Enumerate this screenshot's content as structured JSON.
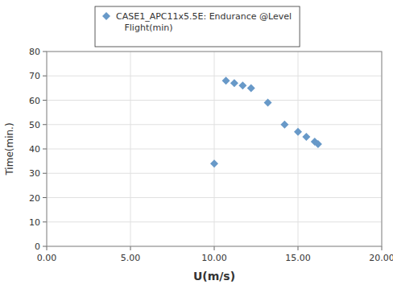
{
  "chart_data": {
    "type": "scatter",
    "x": [
      10.0,
      10.7,
      11.2,
      11.7,
      12.2,
      13.2,
      14.2,
      15.0,
      15.5,
      16.0,
      16.2
    ],
    "series": [
      {
        "name": "CASE1_APC11x5.5E: Endurance @Level\n   Flight(min)",
        "color": "#6899c8",
        "marker": "diamond",
        "values": [
          34,
          68,
          67,
          66,
          65,
          59,
          50,
          47,
          45,
          43,
          42
        ]
      }
    ],
    "x_label": "U(m/s)",
    "y_label": "Time(min.)",
    "xlim": [
      0,
      20
    ],
    "ylim": [
      0,
      80
    ],
    "xticks": [
      {
        "value": 0,
        "label": "0.00"
      },
      {
        "value": 5,
        "label": "5.00"
      },
      {
        "value": 10,
        "label": "10.00"
      },
      {
        "value": 15,
        "label": "15.00"
      },
      {
        "value": 20,
        "label": "20.00"
      }
    ],
    "yticks": [
      0,
      10,
      20,
      30,
      40,
      50,
      60,
      70,
      80
    ],
    "grid": true,
    "legend": "upper left"
  }
}
